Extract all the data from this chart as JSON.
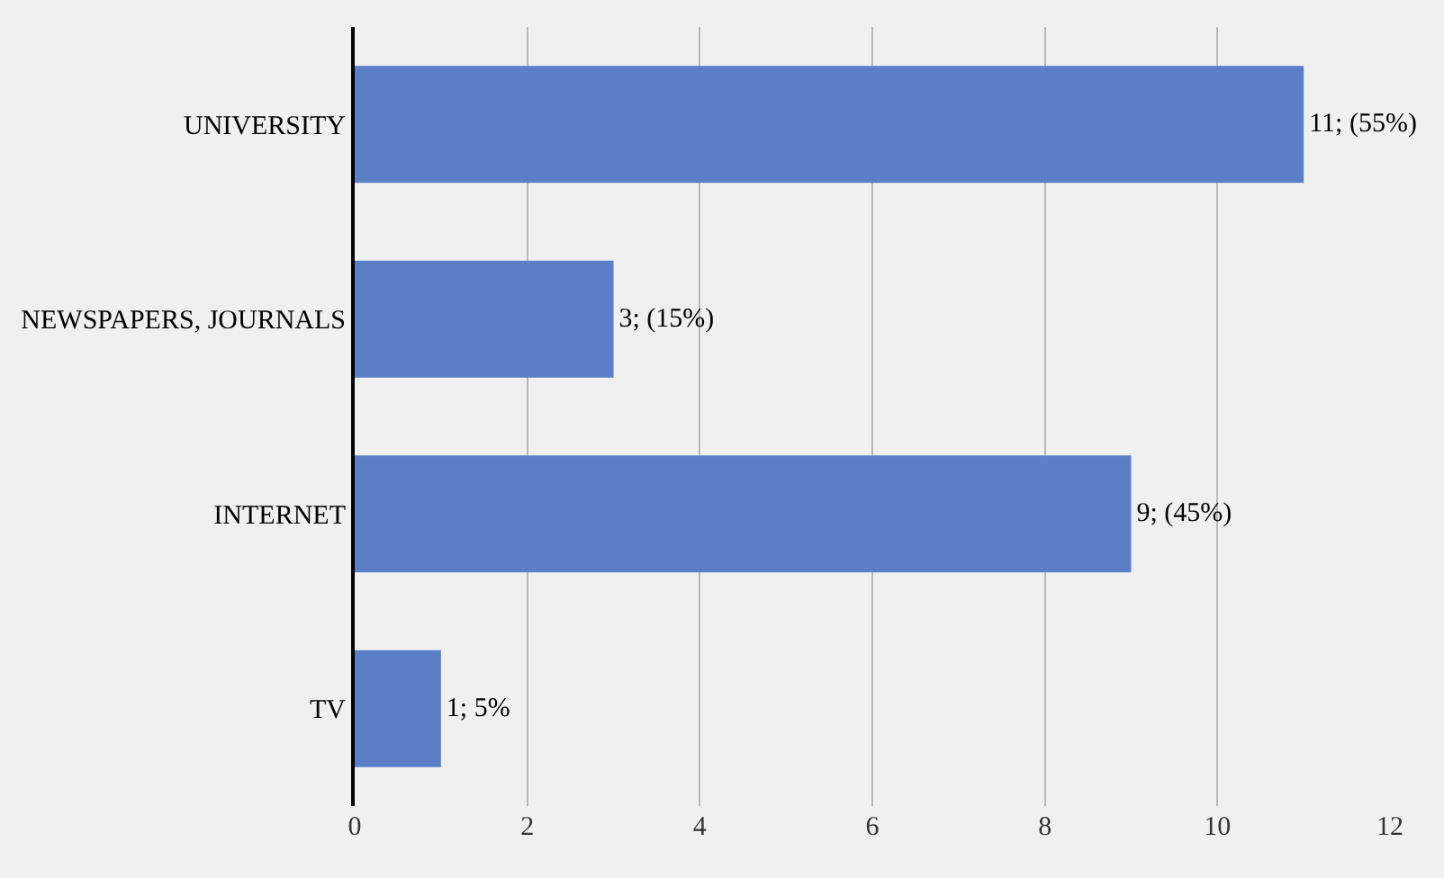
{
  "chart_data": {
    "type": "bar",
    "orientation": "horizontal",
    "categories": [
      "UNIVERSITY",
      "NEWSPAPERS, JOURNALS",
      "INTERNET",
      "TV"
    ],
    "values": [
      11,
      3,
      9,
      1
    ],
    "value_labels": [
      "11; (55%)",
      "3; (15%)",
      "9; (45%)",
      "1; 5%"
    ],
    "color": "#5b7fc6",
    "xlim": [
      0,
      12
    ],
    "xticks": [
      0,
      2,
      4,
      6,
      8,
      10,
      12
    ],
    "grid": "x"
  }
}
